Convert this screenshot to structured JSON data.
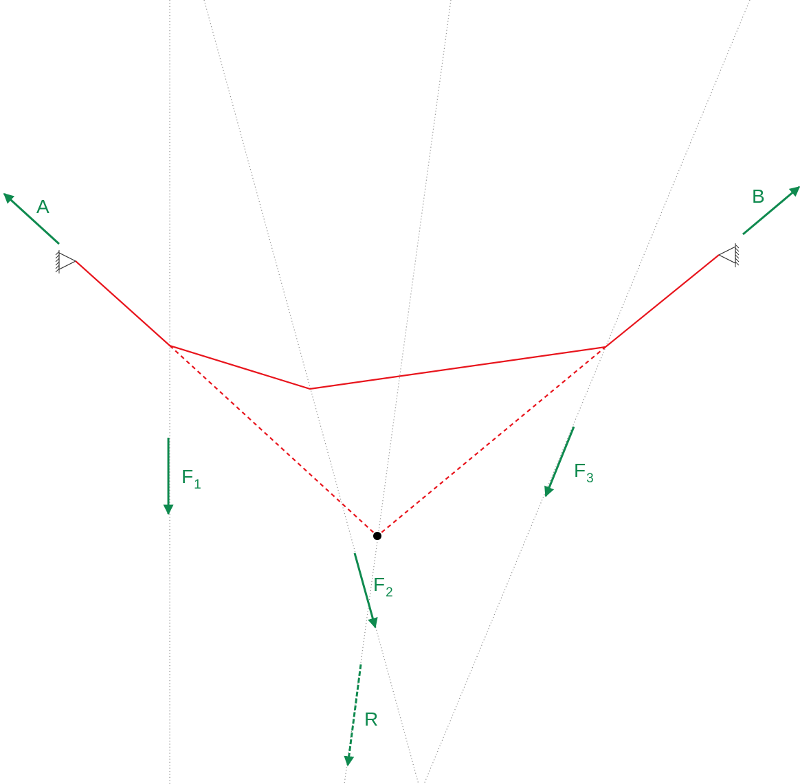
{
  "colors": {
    "cable": "#e8141c",
    "force": "#0f8a4f",
    "guide": "#8c8c8c",
    "point": "#000000"
  },
  "labels": {
    "A": "A",
    "B": "B",
    "F1": {
      "main": "F",
      "sub": "1"
    },
    "F2": {
      "main": "F",
      "sub": "2"
    },
    "F3": {
      "main": "F",
      "sub": "3"
    },
    "R": "R"
  }
}
